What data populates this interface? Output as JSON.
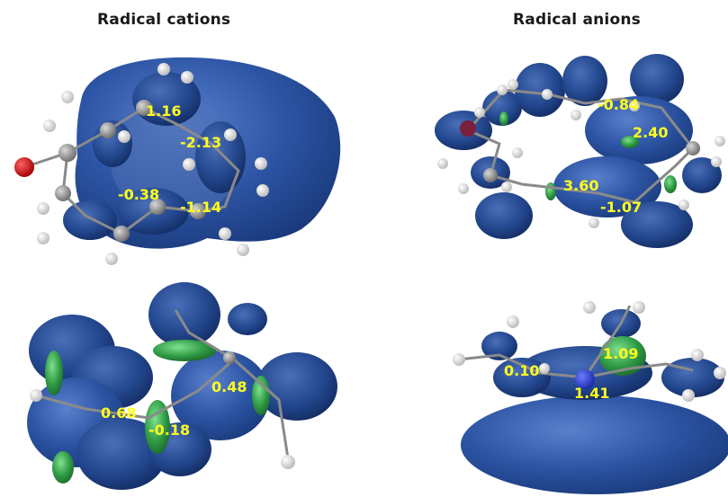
{
  "headers": {
    "left": "Radical cations",
    "right": "Radical anions"
  },
  "panels": [
    {
      "id": "cation-top",
      "values": [
        "1.16",
        "-2.13",
        "-0.38",
        "-1.14"
      ]
    },
    {
      "id": "anion-top",
      "values": [
        "-0.84",
        "2.40",
        "3.60",
        "-1.07"
      ]
    },
    {
      "id": "cation-bottom",
      "values": [
        "0.48",
        "0.68",
        "-0.18"
      ]
    },
    {
      "id": "anion-bottom",
      "values": [
        "1.09",
        "0.10",
        "1.41"
      ]
    }
  ],
  "colors": {
    "lobe_blue": "#2a4f9a",
    "lobe_green": "#2f9a45",
    "label_yellow": "#ffff1e",
    "oxygen_red": "#e00000",
    "bond_gray": "#8a8a8a"
  }
}
